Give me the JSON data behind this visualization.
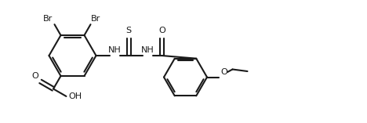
{
  "bg": "#ffffff",
  "lc": "#1a1a1a",
  "lw": 1.5,
  "fs": 8.0,
  "figw": 4.68,
  "figh": 1.57,
  "dpi": 100,
  "xlim": [
    0,
    9.36
  ],
  "ylim": [
    0,
    3.14
  ]
}
